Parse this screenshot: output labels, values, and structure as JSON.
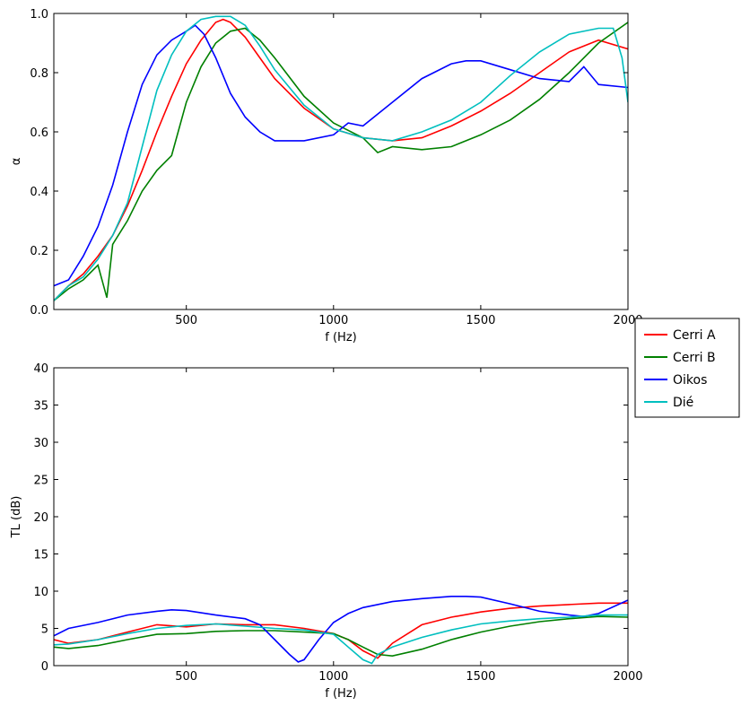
{
  "chart_data": [
    {
      "type": "line",
      "xlabel": "f (Hz)",
      "ylabel": "α",
      "xlim": [
        50,
        2000
      ],
      "ylim": [
        0.0,
        1.0
      ],
      "xticks": [
        500,
        1000,
        1500,
        2000
      ],
      "xtick_labels": [
        "500",
        "1000",
        "1500",
        "2000"
      ],
      "yticks": [
        0.0,
        0.2,
        0.4,
        0.6,
        0.8,
        1.0
      ],
      "ytick_labels": [
        "0.0",
        "0.2",
        "0.4",
        "0.6",
        "0.8",
        "1.0"
      ],
      "grid": false,
      "series": [
        {
          "name": "Cerri A",
          "color": "#ff0000",
          "x": [
            50,
            100,
            150,
            200,
            250,
            300,
            350,
            400,
            450,
            500,
            550,
            600,
            625,
            650,
            700,
            750,
            800,
            900,
            1000,
            1100,
            1200,
            1300,
            1400,
            1500,
            1600,
            1700,
            1800,
            1900,
            2000
          ],
          "y": [
            0.03,
            0.08,
            0.12,
            0.18,
            0.25,
            0.35,
            0.47,
            0.6,
            0.72,
            0.83,
            0.91,
            0.97,
            0.98,
            0.97,
            0.92,
            0.85,
            0.78,
            0.68,
            0.61,
            0.58,
            0.57,
            0.58,
            0.62,
            0.67,
            0.73,
            0.8,
            0.87,
            0.91,
            0.88
          ]
        },
        {
          "name": "Cerri B",
          "color": "#008000",
          "x": [
            50,
            100,
            150,
            200,
            230,
            250,
            300,
            350,
            400,
            450,
            500,
            550,
            600,
            650,
            700,
            750,
            800,
            900,
            1000,
            1100,
            1150,
            1200,
            1300,
            1400,
            1500,
            1600,
            1700,
            1800,
            1900,
            2000
          ],
          "y": [
            0.03,
            0.07,
            0.1,
            0.15,
            0.04,
            0.22,
            0.3,
            0.4,
            0.47,
            0.52,
            0.7,
            0.82,
            0.9,
            0.94,
            0.95,
            0.91,
            0.85,
            0.72,
            0.63,
            0.58,
            0.53,
            0.55,
            0.54,
            0.55,
            0.59,
            0.64,
            0.71,
            0.8,
            0.9,
            0.97
          ]
        },
        {
          "name": "Oikos",
          "color": "#0000ff",
          "x": [
            50,
            100,
            150,
            200,
            250,
            300,
            350,
            400,
            450,
            500,
            530,
            560,
            600,
            650,
            700,
            750,
            800,
            900,
            1000,
            1050,
            1100,
            1200,
            1300,
            1400,
            1450,
            1500,
            1600,
            1700,
            1800,
            1850,
            1900,
            2000
          ],
          "y": [
            0.08,
            0.1,
            0.18,
            0.28,
            0.42,
            0.6,
            0.76,
            0.86,
            0.91,
            0.94,
            0.96,
            0.93,
            0.85,
            0.73,
            0.65,
            0.6,
            0.57,
            0.57,
            0.59,
            0.63,
            0.62,
            0.7,
            0.78,
            0.83,
            0.84,
            0.84,
            0.81,
            0.78,
            0.77,
            0.82,
            0.76,
            0.75
          ]
        },
        {
          "name": "Dié",
          "color": "#00bfbf",
          "x": [
            50,
            100,
            150,
            200,
            250,
            300,
            350,
            400,
            450,
            500,
            550,
            600,
            650,
            700,
            750,
            800,
            900,
            1000,
            1100,
            1200,
            1300,
            1400,
            1500,
            1600,
            1700,
            1800,
            1900,
            1950,
            1980,
            2000
          ],
          "y": [
            0.03,
            0.08,
            0.11,
            0.17,
            0.25,
            0.36,
            0.55,
            0.74,
            0.86,
            0.94,
            0.98,
            0.99,
            0.99,
            0.96,
            0.89,
            0.81,
            0.69,
            0.61,
            0.58,
            0.57,
            0.6,
            0.64,
            0.7,
            0.79,
            0.87,
            0.93,
            0.95,
            0.95,
            0.85,
            0.7
          ]
        }
      ]
    },
    {
      "type": "line",
      "xlabel": "f (Hz)",
      "ylabel": "TL (dB)",
      "xlim": [
        50,
        2000
      ],
      "ylim": [
        0,
        40
      ],
      "xticks": [
        500,
        1000,
        1500,
        2000
      ],
      "xtick_labels": [
        "500",
        "1000",
        "1500",
        "2000"
      ],
      "yticks": [
        0,
        5,
        10,
        15,
        20,
        25,
        30,
        35,
        40
      ],
      "ytick_labels": [
        "0",
        "5",
        "10",
        "15",
        "20",
        "25",
        "30",
        "35",
        "40"
      ],
      "grid": false,
      "series": [
        {
          "name": "Cerri A",
          "color": "#ff0000",
          "x": [
            50,
            100,
            200,
            300,
            400,
            500,
            600,
            700,
            800,
            900,
            1000,
            1050,
            1100,
            1150,
            1200,
            1300,
            1400,
            1500,
            1600,
            1700,
            1800,
            1900,
            2000
          ],
          "y": [
            3.5,
            3.0,
            3.5,
            4.5,
            5.5,
            5.2,
            5.6,
            5.5,
            5.5,
            5.0,
            4.3,
            3.5,
            2.0,
            1.0,
            3.0,
            5.5,
            6.5,
            7.2,
            7.7,
            8.0,
            8.2,
            8.4,
            8.4
          ]
        },
        {
          "name": "Cerri B",
          "color": "#008000",
          "x": [
            50,
            100,
            200,
            300,
            400,
            500,
            600,
            700,
            800,
            900,
            1000,
            1050,
            1100,
            1150,
            1200,
            1300,
            1400,
            1500,
            1600,
            1700,
            1800,
            1900,
            2000
          ],
          "y": [
            2.5,
            2.3,
            2.7,
            3.5,
            4.2,
            4.3,
            4.6,
            4.7,
            4.7,
            4.5,
            4.3,
            3.5,
            2.5,
            1.5,
            1.3,
            2.2,
            3.5,
            4.5,
            5.3,
            5.9,
            6.3,
            6.6,
            6.5
          ]
        },
        {
          "name": "Oikos",
          "color": "#0000ff",
          "x": [
            50,
            100,
            200,
            300,
            400,
            450,
            500,
            600,
            700,
            750,
            800,
            850,
            880,
            900,
            950,
            1000,
            1050,
            1100,
            1200,
            1300,
            1400,
            1450,
            1500,
            1600,
            1700,
            1800,
            1850,
            1900,
            2000
          ],
          "y": [
            4.0,
            5.0,
            5.8,
            6.8,
            7.3,
            7.5,
            7.4,
            6.8,
            6.3,
            5.5,
            3.5,
            1.5,
            0.5,
            0.8,
            3.5,
            5.8,
            7.0,
            7.8,
            8.6,
            9.0,
            9.3,
            9.3,
            9.2,
            8.3,
            7.3,
            6.8,
            6.6,
            7.0,
            8.8
          ]
        },
        {
          "name": "Dié",
          "color": "#00bfbf",
          "x": [
            50,
            100,
            200,
            300,
            400,
            500,
            600,
            700,
            800,
            900,
            1000,
            1050,
            1100,
            1130,
            1150,
            1200,
            1300,
            1400,
            1500,
            1600,
            1700,
            1800,
            1900,
            2000
          ],
          "y": [
            2.8,
            2.9,
            3.5,
            4.3,
            5.0,
            5.4,
            5.6,
            5.3,
            5.0,
            4.8,
            4.2,
            2.5,
            0.8,
            0.3,
            1.5,
            2.5,
            3.8,
            4.8,
            5.6,
            6.0,
            6.3,
            6.5,
            6.8,
            6.8
          ]
        }
      ]
    }
  ],
  "legend": {
    "placement": "right, between subplots",
    "entries": [
      {
        "label": "Cerri A",
        "color": "#ff0000"
      },
      {
        "label": "Cerri B",
        "color": "#008000"
      },
      {
        "label": "Oikos",
        "color": "#0000ff"
      },
      {
        "label": "Dié",
        "color": "#00bfbf"
      }
    ]
  }
}
